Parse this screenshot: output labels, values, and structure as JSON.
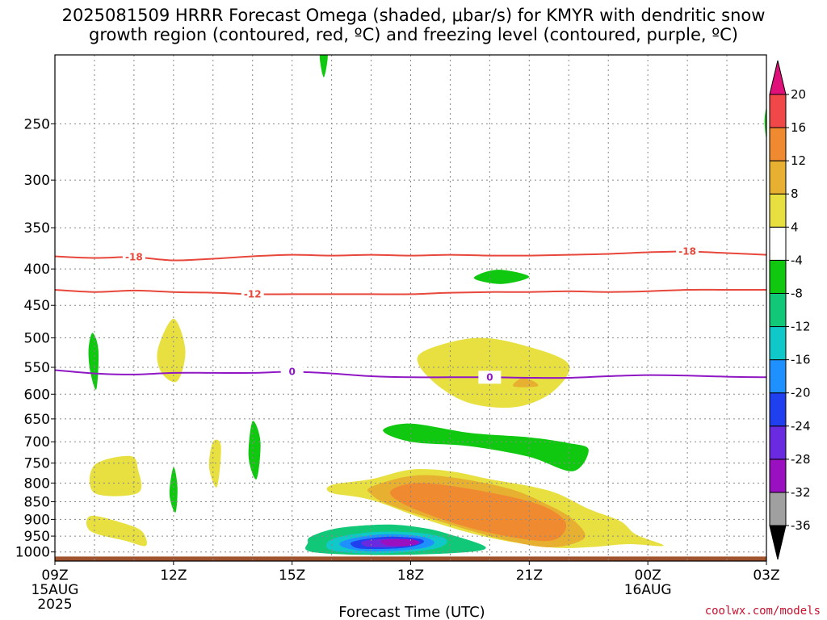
{
  "title": {
    "line1": "2025081509 HRRR Forecast Omega (shaded, μbar/s) for KMYR with dendritic snow",
    "line2": "growth region (contoured, red, ºC) and freezing level (contoured, purple, ºC)"
  },
  "credit": "coolwx.com/models",
  "colors": {
    "dgz_contour": "#e8473b",
    "freezing_contour": "#8f18c4",
    "ground": "#a0522d",
    "grid": "#888888"
  },
  "chart_data": {
    "type": "heatmap",
    "xlabel": "Forecast Time (UTC)",
    "ylabel": "",
    "x_ticks": [
      {
        "hour": 0,
        "label": "09Z",
        "sub1": "15AUG",
        "sub2": "2025"
      },
      {
        "hour": 3,
        "label": "12Z",
        "sub1": "",
        "sub2": ""
      },
      {
        "hour": 6,
        "label": "15Z",
        "sub1": "",
        "sub2": ""
      },
      {
        "hour": 9,
        "label": "18Z",
        "sub1": "",
        "sub2": ""
      },
      {
        "hour": 12,
        "label": "21Z",
        "sub1": "",
        "sub2": ""
      },
      {
        "hour": 15,
        "label": "00Z",
        "sub1": "16AUG",
        "sub2": ""
      },
      {
        "hour": 18,
        "label": "03Z",
        "sub1": "",
        "sub2": ""
      }
    ],
    "xlim": [
      "2025-08-15 09Z",
      "2025-08-16 03Z"
    ],
    "y_ticks": [
      250,
      300,
      350,
      400,
      450,
      500,
      550,
      600,
      650,
      700,
      750,
      800,
      850,
      900,
      950,
      1000
    ],
    "ylim": [
      1030,
      200
    ],
    "y_scale": "log",
    "grid": true,
    "colorbar": {
      "levels": [
        -36,
        -32,
        -28,
        -24,
        -20,
        -16,
        -12,
        -8,
        -4,
        4,
        8,
        12,
        16,
        20
      ],
      "colors": [
        "#000000",
        "#a0a0a0",
        "#9a10c0",
        "#6a2ae0",
        "#2040f0",
        "#1e90ff",
        "#10c8c8",
        "#10c878",
        "#10c810",
        "#ffffff",
        "#e8e040",
        "#e8b030",
        "#f08a30",
        "#f04848",
        "#e0107a"
      ]
    },
    "contours": [
      {
        "series": "Temperature (DGZ)",
        "value": -18,
        "label": "-18",
        "color": "#e8473b",
        "points": [
          [
            0,
            384
          ],
          [
            1,
            386
          ],
          [
            2,
            385
          ],
          [
            3,
            389
          ],
          [
            4,
            387
          ],
          [
            5,
            384
          ],
          [
            6,
            382
          ],
          [
            7,
            383
          ],
          [
            8,
            382
          ],
          [
            9,
            383
          ],
          [
            10,
            382
          ],
          [
            11,
            383
          ],
          [
            12,
            383
          ],
          [
            13,
            382
          ],
          [
            14,
            381
          ],
          [
            15,
            379
          ],
          [
            16,
            378
          ],
          [
            17,
            380
          ],
          [
            18,
            382
          ]
        ]
      },
      {
        "series": "Temperature (DGZ)",
        "value": -12,
        "label": "-12",
        "color": "#e8473b",
        "points": [
          [
            0,
            428
          ],
          [
            1,
            431
          ],
          [
            2,
            429
          ],
          [
            3,
            431
          ],
          [
            4,
            432
          ],
          [
            5,
            434
          ],
          [
            6,
            434
          ],
          [
            7,
            434
          ],
          [
            8,
            434
          ],
          [
            9,
            434
          ],
          [
            10,
            432
          ],
          [
            11,
            431
          ],
          [
            12,
            431
          ],
          [
            13,
            430
          ],
          [
            14,
            431
          ],
          [
            15,
            430
          ],
          [
            16,
            428
          ],
          [
            17,
            428
          ],
          [
            18,
            428
          ]
        ]
      },
      {
        "series": "Freezing level",
        "value": 0,
        "label": "0",
        "color": "#8f18c4",
        "points": [
          [
            0,
            555
          ],
          [
            1,
            561
          ],
          [
            2,
            563
          ],
          [
            3,
            560
          ],
          [
            4,
            560
          ],
          [
            5,
            560
          ],
          [
            6,
            558
          ],
          [
            7,
            561
          ],
          [
            8,
            566
          ],
          [
            9,
            568
          ],
          [
            10,
            568
          ],
          [
            11,
            568
          ],
          [
            12,
            569
          ],
          [
            13,
            569
          ],
          [
            14,
            566
          ],
          [
            15,
            564
          ],
          [
            16,
            565
          ],
          [
            17,
            567
          ],
          [
            18,
            568
          ]
        ]
      }
    ],
    "shaded_regions": [
      {
        "omega": "-8 to -4",
        "color": "#10c810",
        "points": [
          [
            6.7,
            200
          ],
          [
            6.9,
            200
          ],
          [
            6.8,
            215
          ]
        ]
      },
      {
        "omega": "-8 to -4",
        "color": "#10c810",
        "points": [
          [
            18,
            238
          ],
          [
            17.95,
            248
          ],
          [
            18,
            262
          ]
        ]
      },
      {
        "omega": "-8 to -4",
        "color": "#10c810",
        "points": [
          [
            11.2,
            401
          ],
          [
            12,
            410
          ],
          [
            11.3,
            420
          ],
          [
            10.6,
            412
          ]
        ]
      },
      {
        "omega": "-8 to -4",
        "color": "#10c810",
        "points": [
          [
            0.95,
            492
          ],
          [
            1.1,
            520
          ],
          [
            1.05,
            590
          ],
          [
            0.9,
            560
          ],
          [
            0.85,
            520
          ]
        ]
      },
      {
        "omega": "-8 to -4",
        "color": "#10c810",
        "points": [
          [
            5.0,
            655
          ],
          [
            5.2,
            700
          ],
          [
            5.1,
            790
          ],
          [
            4.9,
            735
          ]
        ]
      },
      {
        "omega": "-8 to -4",
        "color": "#10c810",
        "points": [
          [
            3.0,
            760
          ],
          [
            3.1,
            810
          ],
          [
            3.05,
            880
          ],
          [
            2.9,
            830
          ]
        ]
      },
      {
        "omega": "-8 to -4",
        "color": "#10c810",
        "points": [
          [
            8.3,
            675
          ],
          [
            9,
            660
          ],
          [
            10.5,
            680
          ],
          [
            12,
            690
          ],
          [
            13,
            703
          ],
          [
            13.5,
            718
          ],
          [
            13.1,
            770
          ],
          [
            12,
            735
          ],
          [
            10.5,
            710
          ],
          [
            9,
            700
          ]
        ]
      },
      {
        "omega": "4 to 8",
        "color": "#e8e040",
        "points": [
          [
            2.6,
            520
          ],
          [
            3.0,
            470
          ],
          [
            3.3,
            520
          ],
          [
            3.1,
            575
          ],
          [
            2.7,
            560
          ]
        ]
      },
      {
        "omega": "4 to 8",
        "color": "#e8e040",
        "points": [
          [
            4.0,
            700
          ],
          [
            4.2,
            710
          ],
          [
            4.1,
            810
          ],
          [
            3.9,
            760
          ]
        ]
      },
      {
        "omega": "4 to 8",
        "color": "#e8e040",
        "points": [
          [
            1,
            755
          ],
          [
            1.9,
            733
          ],
          [
            2.1,
            765
          ],
          [
            2.1,
            826
          ],
          [
            1,
            826
          ]
        ]
      },
      {
        "omega": "4 to 8",
        "color": "#e8e040",
        "points": [
          [
            0.9,
            890
          ],
          [
            1.7,
            910
          ],
          [
            2.2,
            935
          ],
          [
            2.3,
            980
          ],
          [
            1.8,
            965
          ],
          [
            0.9,
            935
          ]
        ]
      },
      {
        "omega": "4 to 8",
        "color": "#e8e040",
        "points": [
          [
            9.4,
            520
          ],
          [
            10.7,
            500
          ],
          [
            12,
            515
          ],
          [
            13,
            545
          ],
          [
            12.6,
            595
          ],
          [
            11.7,
            625
          ],
          [
            10.6,
            620
          ],
          [
            9.8,
            590
          ],
          [
            9.2,
            545
          ]
        ]
      },
      {
        "omega": "4 to 8",
        "color": "#e8e040",
        "points": [
          [
            7,
            805
          ],
          [
            8,
            790
          ],
          [
            9,
            766
          ],
          [
            10,
            770
          ],
          [
            11,
            790
          ],
          [
            12.5,
            820
          ],
          [
            13.5,
            870
          ],
          [
            14.3,
            905
          ],
          [
            14.7,
            945
          ],
          [
            15.4,
            980
          ],
          [
            14.5,
            975
          ],
          [
            13.5,
            985
          ],
          [
            12.5,
            985
          ],
          [
            11,
            955
          ],
          [
            9.5,
            905
          ],
          [
            8,
            845
          ],
          [
            7,
            826
          ]
        ]
      },
      {
        "omega": "8 to 12",
        "color": "#e8b030",
        "points": [
          [
            8.0,
            810
          ],
          [
            9,
            782
          ],
          [
            10,
            785
          ],
          [
            11.5,
            815
          ],
          [
            12.5,
            860
          ],
          [
            13.1,
            900
          ],
          [
            13.4,
            955
          ],
          [
            12.6,
            985
          ],
          [
            11.5,
            965
          ],
          [
            10,
            915
          ],
          [
            8.5,
            860
          ],
          [
            8,
            830
          ]
        ]
      },
      {
        "omega": "8 to 12",
        "color": "#e8b030",
        "points": [
          [
            11.8,
            570
          ],
          [
            12.1,
            575
          ],
          [
            12.2,
            585
          ],
          [
            11.6,
            585
          ]
        ]
      },
      {
        "omega": "12 to 16",
        "color": "#f08a30",
        "points": [
          [
            8.5,
            820
          ],
          [
            9.3,
            800
          ],
          [
            11,
            825
          ],
          [
            12.3,
            860
          ],
          [
            12.9,
            905
          ],
          [
            12.8,
            950
          ],
          [
            12.3,
            965
          ],
          [
            11,
            940
          ],
          [
            9.8,
            900
          ],
          [
            8.8,
            855
          ]
        ]
      },
      {
        "omega": "-12 to -8",
        "color": "#10c878",
        "points": [
          [
            6.5,
            950
          ],
          [
            7.2,
            925
          ],
          [
            8.4,
            915
          ],
          [
            9.3,
            925
          ],
          [
            10,
            945
          ],
          [
            10.9,
            985
          ],
          [
            10.2,
            1003
          ],
          [
            8.2,
            1010
          ],
          [
            6.5,
            1000
          ],
          [
            6.4,
            970
          ]
        ]
      },
      {
        "omega": "-16 to -12",
        "color": "#10c8c8",
        "points": [
          [
            7.0,
            960
          ],
          [
            8,
            938
          ],
          [
            9.2,
            940
          ],
          [
            9.9,
            960
          ],
          [
            9.6,
            990
          ],
          [
            8.2,
            1005
          ],
          [
            7,
            995
          ]
        ]
      },
      {
        "omega": "-20 to -16",
        "color": "#1e90ff",
        "points": [
          [
            7.3,
            965
          ],
          [
            8.2,
            945
          ],
          [
            9.2,
            950
          ],
          [
            9.6,
            970
          ],
          [
            9.2,
            990
          ],
          [
            8,
            998
          ],
          [
            7.3,
            985
          ]
        ]
      },
      {
        "omega": "-24 to -20",
        "color": "#2040f0",
        "points": [
          [
            7.6,
            965
          ],
          [
            8.4,
            952
          ],
          [
            9.2,
            958
          ],
          [
            9.3,
            972
          ],
          [
            8.8,
            987
          ],
          [
            7.8,
            990
          ],
          [
            7.5,
            978
          ]
        ]
      },
      {
        "omega": "-28 to -24",
        "color": "#6a2ae0",
        "points": [
          [
            7.8,
            966
          ],
          [
            8.5,
            958
          ],
          [
            9.1,
            962
          ],
          [
            9.2,
            974
          ],
          [
            8.6,
            984
          ],
          [
            7.9,
            983
          ]
        ]
      },
      {
        "omega": "-32 to -28",
        "color": "#9a10c0",
        "points": [
          [
            8.3,
            962
          ],
          [
            9.0,
            960
          ],
          [
            9.2,
            970
          ],
          [
            9,
            980
          ],
          [
            8.6,
            982
          ],
          [
            8.3,
            975
          ]
        ]
      }
    ],
    "ground_pressure": 1015
  }
}
